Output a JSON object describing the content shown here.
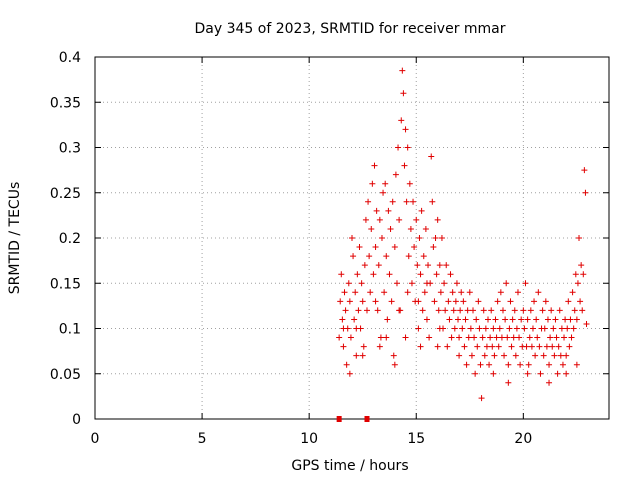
{
  "chart_data": {
    "type": "scatter",
    "title": "Day 345 of 2023, SRMTID for receiver mmar",
    "xlabel": "GPS time / hours",
    "ylabel": "SRMTID / TECUs",
    "xlim": [
      0,
      24
    ],
    "ylim": [
      0,
      0.4
    ],
    "xticks": [
      0,
      5,
      10,
      15,
      20
    ],
    "xtick_labels": [
      "0",
      "5",
      "10",
      "15",
      "20"
    ],
    "yticks": [
      0,
      0.05,
      0.1,
      0.15,
      0.2,
      0.25,
      0.3,
      0.35,
      0.4
    ],
    "ytick_labels": [
      "0",
      "0.05",
      "0.1",
      "0.15",
      "0.2",
      "0.25",
      "0.3",
      "0.35",
      "0.4"
    ],
    "grid": true,
    "marker": "plus",
    "color": "#e00000",
    "zero_markers_x": [
      11.4,
      12.7
    ],
    "series": [
      {
        "name": "SRMTID",
        "points": [
          [
            11.4,
            0.09
          ],
          [
            11.45,
            0.13
          ],
          [
            11.5,
            0.16
          ],
          [
            11.55,
            0.11
          ],
          [
            11.6,
            0.08
          ],
          [
            11.65,
            0.14
          ],
          [
            11.7,
            0.12
          ],
          [
            11.75,
            0.06
          ],
          [
            11.8,
            0.1
          ],
          [
            11.85,
            0.15
          ],
          [
            11.9,
            0.13
          ],
          [
            11.95,
            0.09
          ],
          [
            12.0,
            0.2
          ],
          [
            12.05,
            0.18
          ],
          [
            12.1,
            0.11
          ],
          [
            12.15,
            0.14
          ],
          [
            12.2,
            0.07
          ],
          [
            12.25,
            0.16
          ],
          [
            12.3,
            0.12
          ],
          [
            12.35,
            0.19
          ],
          [
            12.4,
            0.1
          ],
          [
            12.45,
            0.15
          ],
          [
            12.5,
            0.13
          ],
          [
            12.55,
            0.08
          ],
          [
            12.6,
            0.17
          ],
          [
            12.65,
            0.22
          ],
          [
            12.7,
            0.12
          ],
          [
            12.75,
            0.24
          ],
          [
            12.8,
            0.18
          ],
          [
            12.85,
            0.14
          ],
          [
            12.9,
            0.21
          ],
          [
            12.95,
            0.26
          ],
          [
            13.0,
            0.16
          ],
          [
            13.05,
            0.28
          ],
          [
            13.1,
            0.19
          ],
          [
            13.15,
            0.23
          ],
          [
            13.2,
            0.12
          ],
          [
            13.25,
            0.17
          ],
          [
            13.3,
            0.22
          ],
          [
            13.35,
            0.09
          ],
          [
            13.4,
            0.2
          ],
          [
            13.45,
            0.25
          ],
          [
            13.5,
            0.14
          ],
          [
            13.55,
            0.26
          ],
          [
            13.6,
            0.18
          ],
          [
            13.65,
            0.11
          ],
          [
            13.7,
            0.23
          ],
          [
            13.75,
            0.16
          ],
          [
            13.8,
            0.21
          ],
          [
            13.85,
            0.13
          ],
          [
            13.9,
            0.24
          ],
          [
            13.95,
            0.07
          ],
          [
            14.0,
            0.19
          ],
          [
            14.05,
            0.27
          ],
          [
            14.1,
            0.15
          ],
          [
            14.15,
            0.3
          ],
          [
            14.2,
            0.22
          ],
          [
            14.25,
            0.12
          ],
          [
            14.3,
            0.33
          ],
          [
            14.35,
            0.385
          ],
          [
            14.4,
            0.36
          ],
          [
            14.45,
            0.28
          ],
          [
            14.5,
            0.32
          ],
          [
            14.55,
            0.24
          ],
          [
            14.6,
            0.3
          ],
          [
            14.65,
            0.18
          ],
          [
            14.7,
            0.26
          ],
          [
            14.75,
            0.21
          ],
          [
            14.8,
            0.15
          ],
          [
            14.85,
            0.24
          ],
          [
            14.9,
            0.19
          ],
          [
            14.95,
            0.13
          ],
          [
            15.0,
            0.22
          ],
          [
            15.05,
            0.17
          ],
          [
            15.1,
            0.1
          ],
          [
            15.15,
            0.2
          ],
          [
            15.2,
            0.16
          ],
          [
            15.25,
            0.23
          ],
          [
            15.3,
            0.12
          ],
          [
            15.35,
            0.18
          ],
          [
            15.4,
            0.14
          ],
          [
            15.45,
            0.21
          ],
          [
            15.5,
            0.11
          ],
          [
            15.55,
            0.17
          ],
          [
            15.6,
            0.09
          ],
          [
            15.65,
            0.15
          ],
          [
            15.7,
            0.29
          ],
          [
            15.75,
            0.24
          ],
          [
            15.8,
            0.19
          ],
          [
            15.85,
            0.13
          ],
          [
            15.9,
            0.2
          ],
          [
            15.95,
            0.16
          ],
          [
            16.0,
            0.22
          ],
          [
            16.05,
            0.12
          ],
          [
            16.1,
            0.17
          ],
          [
            16.15,
            0.14
          ],
          [
            16.2,
            0.2
          ],
          [
            16.25,
            0.1
          ],
          [
            16.3,
            0.15
          ],
          [
            16.35,
            0.12
          ],
          [
            16.4,
            0.17
          ],
          [
            16.45,
            0.08
          ],
          [
            16.5,
            0.13
          ],
          [
            16.55,
            0.11
          ],
          [
            16.6,
            0.16
          ],
          [
            16.65,
            0.09
          ],
          [
            16.7,
            0.14
          ],
          [
            16.75,
            0.12
          ],
          [
            16.8,
            0.1
          ],
          [
            16.85,
            0.13
          ],
          [
            16.9,
            0.15
          ],
          [
            16.95,
            0.11
          ],
          [
            17.0,
            0.09
          ],
          [
            17.05,
            0.12
          ],
          [
            17.1,
            0.14
          ],
          [
            17.15,
            0.1
          ],
          [
            17.2,
            0.13
          ],
          [
            17.25,
            0.08
          ],
          [
            17.3,
            0.11
          ],
          [
            17.35,
            0.06
          ],
          [
            17.4,
            0.12
          ],
          [
            17.45,
            0.09
          ],
          [
            17.5,
            0.14
          ],
          [
            17.55,
            0.1
          ],
          [
            17.6,
            0.07
          ],
          [
            17.65,
            0.12
          ],
          [
            17.7,
            0.09
          ],
          [
            17.75,
            0.05
          ],
          [
            17.8,
            0.11
          ],
          [
            17.85,
            0.08
          ],
          [
            17.9,
            0.13
          ],
          [
            17.95,
            0.1
          ],
          [
            18.0,
            0.06
          ],
          [
            18.05,
            0.023
          ],
          [
            18.1,
            0.09
          ],
          [
            18.15,
            0.12
          ],
          [
            18.2,
            0.07
          ],
          [
            18.25,
            0.1
          ],
          [
            18.3,
            0.08
          ],
          [
            18.35,
            0.11
          ],
          [
            18.4,
            0.06
          ],
          [
            18.45,
            0.09
          ],
          [
            18.5,
            0.12
          ],
          [
            18.55,
            0.08
          ],
          [
            18.6,
            0.1
          ],
          [
            18.65,
            0.07
          ],
          [
            18.7,
            0.11
          ],
          [
            18.75,
            0.09
          ],
          [
            18.8,
            0.13
          ],
          [
            18.85,
            0.08
          ],
          [
            18.9,
            0.1
          ],
          [
            18.95,
            0.14
          ],
          [
            19.0,
            0.09
          ],
          [
            19.05,
            0.12
          ],
          [
            19.1,
            0.07
          ],
          [
            19.15,
            0.11
          ],
          [
            19.2,
            0.15
          ],
          [
            19.25,
            0.09
          ],
          [
            19.3,
            0.06
          ],
          [
            19.35,
            0.1
          ],
          [
            19.4,
            0.13
          ],
          [
            19.45,
            0.08
          ],
          [
            19.5,
            0.11
          ],
          [
            19.55,
            0.09
          ],
          [
            19.6,
            0.12
          ],
          [
            19.65,
            0.07
          ],
          [
            19.7,
            0.1
          ],
          [
            19.75,
            0.14
          ],
          [
            19.8,
            0.09
          ],
          [
            19.85,
            0.06
          ],
          [
            19.9,
            0.11
          ],
          [
            19.95,
            0.08
          ],
          [
            20.0,
            0.12
          ],
          [
            20.05,
            0.1
          ],
          [
            20.1,
            0.15
          ],
          [
            20.15,
            0.08
          ],
          [
            20.2,
            0.11
          ],
          [
            20.25,
            0.06
          ],
          [
            20.3,
            0.09
          ],
          [
            20.35,
            0.12
          ],
          [
            20.4,
            0.08
          ],
          [
            20.45,
            0.1
          ],
          [
            20.5,
            0.13
          ],
          [
            20.55,
            0.07
          ],
          [
            20.6,
            0.11
          ],
          [
            20.65,
            0.09
          ],
          [
            20.7,
            0.14
          ],
          [
            20.75,
            0.08
          ],
          [
            20.8,
            0.05
          ],
          [
            20.85,
            0.1
          ],
          [
            20.9,
            0.12
          ],
          [
            20.95,
            0.07
          ],
          [
            21.0,
            0.1
          ],
          [
            21.05,
            0.13
          ],
          [
            21.1,
            0.08
          ],
          [
            21.15,
            0.11
          ],
          [
            21.2,
            0.06
          ],
          [
            21.25,
            0.09
          ],
          [
            21.3,
            0.12
          ],
          [
            21.35,
            0.08
          ],
          [
            21.4,
            0.1
          ],
          [
            21.45,
            0.07
          ],
          [
            21.5,
            0.11
          ],
          [
            21.55,
            0.09
          ],
          [
            21.6,
            0.05
          ],
          [
            21.65,
            0.08
          ],
          [
            21.7,
            0.12
          ],
          [
            21.75,
            0.07
          ],
          [
            21.8,
            0.1
          ],
          [
            21.85,
            0.06
          ],
          [
            21.9,
            0.09
          ],
          [
            21.95,
            0.11
          ],
          [
            22.0,
            0.07
          ],
          [
            22.05,
            0.1
          ],
          [
            22.1,
            0.13
          ],
          [
            22.15,
            0.08
          ],
          [
            22.2,
            0.11
          ],
          [
            22.25,
            0.09
          ],
          [
            22.3,
            0.14
          ],
          [
            22.35,
            0.1
          ],
          [
            22.4,
            0.12
          ],
          [
            22.45,
            0.16
          ],
          [
            22.5,
            0.11
          ],
          [
            22.55,
            0.15
          ],
          [
            22.6,
            0.2
          ],
          [
            22.65,
            0.13
          ],
          [
            22.7,
            0.17
          ],
          [
            22.75,
            0.12
          ],
          [
            22.8,
            0.16
          ],
          [
            22.85,
            0.275
          ],
          [
            22.9,
            0.25
          ],
          [
            22.95,
            0.105
          ],
          [
            12.2,
            0.1
          ],
          [
            13.1,
            0.13
          ],
          [
            13.6,
            0.09
          ],
          [
            14.2,
            0.12
          ],
          [
            14.6,
            0.14
          ],
          [
            15.1,
            0.13
          ],
          [
            15.5,
            0.15
          ],
          [
            16.1,
            0.1
          ],
          [
            11.6,
            0.1
          ],
          [
            11.9,
            0.05
          ],
          [
            12.5,
            0.07
          ],
          [
            13.3,
            0.08
          ],
          [
            14.0,
            0.06
          ],
          [
            14.5,
            0.09
          ],
          [
            15.2,
            0.08
          ],
          [
            16.0,
            0.08
          ],
          [
            17.0,
            0.07
          ],
          [
            18.6,
            0.05
          ],
          [
            19.3,
            0.04
          ],
          [
            20.2,
            0.05
          ],
          [
            21.2,
            0.04
          ],
          [
            22.0,
            0.05
          ],
          [
            22.5,
            0.06
          ]
        ]
      }
    ]
  }
}
